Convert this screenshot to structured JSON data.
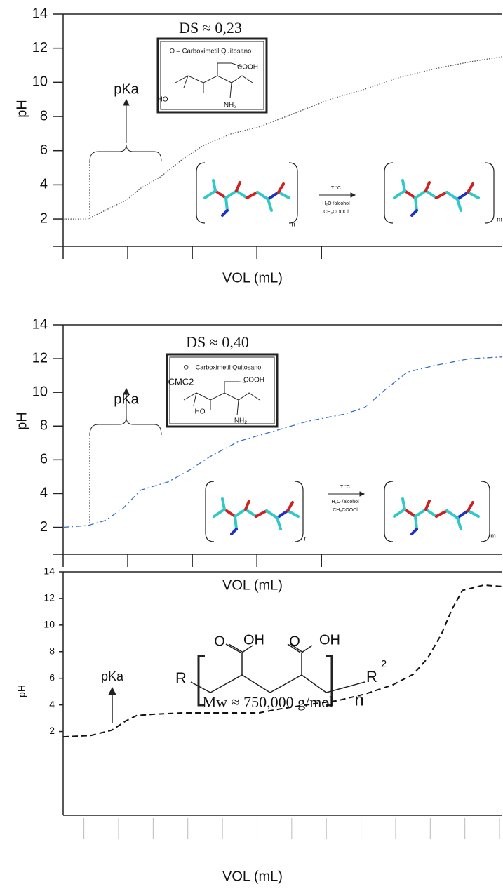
{
  "chart_data": [
    {
      "type": "line",
      "y_label": "pH",
      "x_label": "VOL (mL)",
      "line_style": "dotted",
      "color": "#555555",
      "ylim": [
        0.4,
        14
      ],
      "yticks": [
        2,
        4,
        6,
        8,
        10,
        12,
        14
      ],
      "xlim": [
        0,
        6.8
      ],
      "xticks": [
        0,
        1,
        2,
        3,
        4
      ],
      "x": [
        0,
        0.38,
        0.65,
        0.98,
        1.2,
        1.52,
        1.85,
        2.17,
        2.61,
        3.04,
        3.59,
        4.13,
        4.67,
        5.22,
        5.76,
        6.3,
        6.8
      ],
      "values": [
        2.0,
        2.0,
        2.5,
        3.1,
        3.8,
        4.5,
        5.5,
        6.3,
        7.0,
        7.4,
        8.2,
        9.0,
        9.6,
        10.3,
        10.8,
        11.2,
        11.5
      ],
      "annotations": [
        "DS ≈ 0,23",
        "pKa",
        "O – Carboximetil Quitosano",
        "COOH",
        "HO",
        "NH₂",
        "T °C",
        "H₂O /alcohol",
        "CH₃COOCl",
        "n",
        "m"
      ]
    },
    {
      "type": "line",
      "y_label": "pH",
      "x_label": "VOL (mL)",
      "line_style": "dashdot",
      "color": "#3a6fc4",
      "ylim": [
        0.4,
        14
      ],
      "yticks": [
        2,
        4,
        6,
        8,
        10,
        12,
        14
      ],
      "xlim": [
        0,
        6.8
      ],
      "xticks": [
        0,
        1,
        2,
        3,
        4
      ],
      "x": [
        0,
        0.38,
        0.65,
        0.92,
        1.2,
        1.63,
        1.96,
        2.28,
        2.72,
        3.26,
        3.8,
        4.35,
        4.67,
        5.0,
        5.33,
        5.76,
        6.3,
        6.8
      ],
      "values": [
        2.0,
        2.1,
        2.4,
        3.1,
        4.2,
        4.7,
        5.4,
        6.2,
        7.1,
        7.7,
        8.3,
        8.7,
        9.1,
        10.2,
        11.2,
        11.6,
        12.0,
        12.1
      ],
      "annotations": [
        "DS ≈ 0,40",
        "pKa",
        "O – Carboximetil Quitosano",
        "CMC2",
        "COOH",
        "HO",
        "NH₂",
        "T °C",
        "H₂O /alcohol",
        "CH₃COOCl",
        "n",
        "m"
      ]
    },
    {
      "type": "line",
      "y_label": "pH",
      "x_label": "VOL (mL)",
      "line_style": "dashed",
      "color": "#111111",
      "ylim": [
        -4.3,
        14
      ],
      "yticks": [
        2,
        4,
        6,
        8,
        10,
        12,
        14
      ],
      "xlim": [
        -0.6,
        12.08
      ],
      "xticks": [
        0,
        1,
        2,
        3,
        4,
        5,
        6,
        7,
        8,
        9,
        10,
        11,
        12
      ],
      "x": [
        -0.6,
        0.2,
        0.81,
        1.21,
        1.52,
        2.02,
        2.83,
        3.64,
        5.06,
        5.67,
        6.68,
        7.29,
        8.1,
        8.91,
        9.51,
        9.92,
        10.32,
        10.63,
        10.93,
        11.54,
        12.08
      ],
      "values": [
        1.6,
        1.7,
        2.1,
        2.8,
        3.2,
        3.3,
        3.4,
        3.4,
        3.4,
        3.7,
        4.1,
        4.3,
        4.8,
        5.5,
        6.3,
        7.5,
        9.3,
        11.2,
        12.6,
        13.0,
        12.9
      ],
      "annotations": [
        "pKa",
        "O",
        "OH",
        "O",
        "OH",
        "R",
        "R",
        "2",
        "n",
        "Mw ≈ 750,000 g/mol"
      ]
    }
  ]
}
